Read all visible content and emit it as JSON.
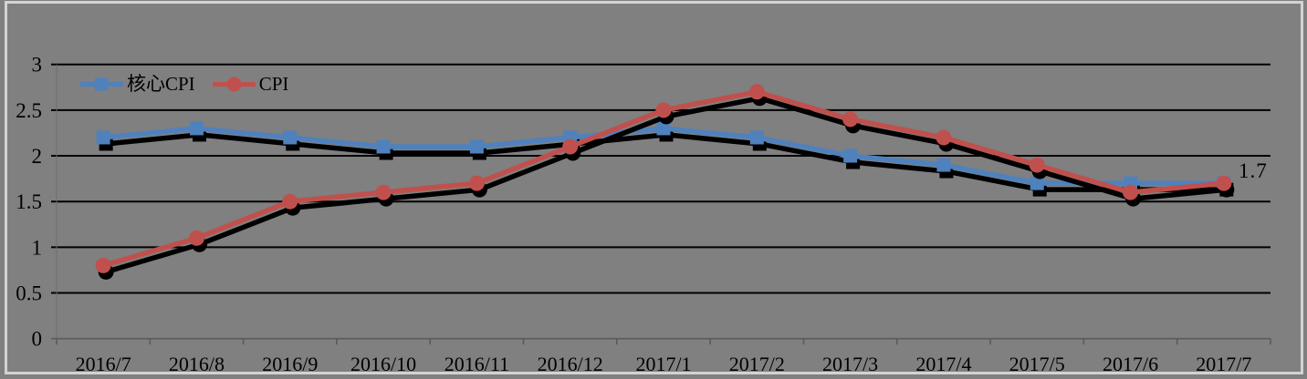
{
  "window": {
    "background_color": "#808080",
    "frame_border_color": "#d3d3d3"
  },
  "chart_data": {
    "type": "line",
    "title": "",
    "xlabel": "",
    "ylabel": "",
    "categories": [
      "2016/7",
      "2016/8",
      "2016/9",
      "2016/10",
      "2016/11",
      "2016/12",
      "2017/1",
      "2017/2",
      "2017/3",
      "2017/4",
      "2017/5",
      "2017/6",
      "2017/7"
    ],
    "series": [
      {
        "name": "核心CPI",
        "color": "#4f81bd",
        "marker": "square",
        "values": [
          2.2,
          2.3,
          2.2,
          2.1,
          2.1,
          2.2,
          2.3,
          2.2,
          2.0,
          1.9,
          1.7,
          1.7,
          1.7
        ]
      },
      {
        "name": "CPI",
        "color": "#c0504d",
        "marker": "circle",
        "values": [
          0.8,
          1.1,
          1.5,
          1.6,
          1.7,
          2.1,
          2.5,
          2.7,
          2.4,
          2.2,
          1.9,
          1.6,
          1.7
        ]
      }
    ],
    "ylim": [
      0,
      3
    ],
    "yticks": [
      0,
      0.5,
      1,
      1.5,
      2,
      2.5,
      3
    ],
    "ytick_labels": [
      "0",
      "0.5",
      "1",
      "1.5",
      "2",
      "2.5",
      "3"
    ],
    "grid": "horizontal",
    "grid_color": "#000000",
    "axis_color": "#5a5a5a",
    "text_color": "#000000",
    "shadow_color": "#000000",
    "legend_position": "top-left-inside",
    "annotation": {
      "text": "1.7",
      "series": "CPI",
      "category": "2017/7",
      "value": 1.7
    }
  }
}
